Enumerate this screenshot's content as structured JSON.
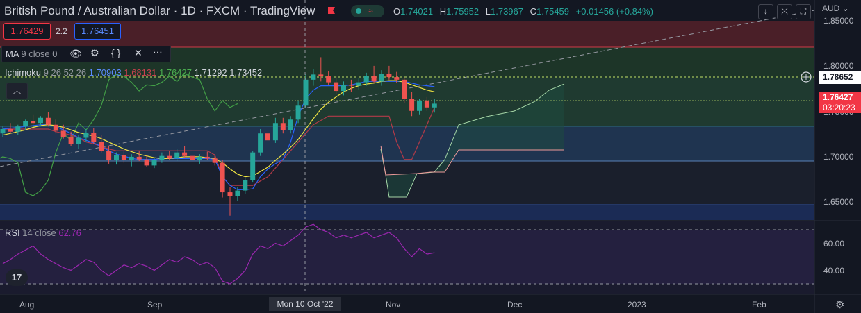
{
  "header": {
    "title": "British Pound / Australian Dollar · 1D · FXCM · TradingView",
    "market_status_icon": "market-open-dot",
    "ohlc": {
      "o_label": "O",
      "o": "1.74021",
      "h_label": "H",
      "h": "1.75952",
      "l_label": "L",
      "l": "1.73967",
      "c_label": "C",
      "c": "1.75459",
      "change": "+0.01456 (+0.84%)"
    },
    "sell_price": "1.76429",
    "spread": "2.2",
    "buy_price": "1.76451"
  },
  "indicators": {
    "ma": {
      "name": "MA",
      "params": "9 close 0"
    },
    "ichimoku": {
      "name": "Ichimoku",
      "params": "9 26 52 26",
      "v1": "1.70903",
      "v2": "1.68131",
      "v3": "1.76427",
      "v4": "1.71292",
      "v5": "1.73452"
    },
    "rsi": {
      "name": "RSI",
      "params": "14 close",
      "value": "62.76"
    }
  },
  "price_axis": {
    "currency": "AUD",
    "ticks": [
      "1.85000",
      "1.80000",
      "1.75000",
      "1.70000",
      "1.65000"
    ],
    "crosshair_price": "1.78652",
    "last_price": "1.76427",
    "countdown": "03:20:23"
  },
  "rsi_axis": {
    "ticks": [
      "60.00",
      "40.00"
    ]
  },
  "time_axis": {
    "labels": [
      "Aug",
      "Sep",
      "Nov",
      "Dec",
      "2023",
      "Feb"
    ],
    "crosshair_date": "Mon 10 Oct '22"
  },
  "colors": {
    "background": "#131722",
    "up": "#26a69a",
    "down": "#ef5350",
    "ma": "#f0e442",
    "tenkan": "#2962ff",
    "kijun": "#b23a48",
    "lagging": "#43a047",
    "rsi": "#9c27b0",
    "buy": "#2962ff",
    "sell": "#f23645"
  },
  "chart_data": {
    "type": "candlestick",
    "symbol": "GBPAUD",
    "ylim": [
      1.63,
      1.86
    ],
    "candles": [
      [
        1.73,
        1.738,
        1.726,
        1.735
      ],
      [
        1.735,
        1.742,
        1.73,
        1.732
      ],
      [
        1.732,
        1.74,
        1.728,
        1.738
      ],
      [
        1.738,
        1.746,
        1.734,
        1.744
      ],
      [
        1.744,
        1.752,
        1.74,
        1.742
      ],
      [
        1.742,
        1.75,
        1.738,
        1.748
      ],
      [
        1.748,
        1.755,
        1.738,
        1.74
      ],
      [
        1.74,
        1.746,
        1.73,
        1.733
      ],
      [
        1.733,
        1.74,
        1.724,
        1.726
      ],
      [
        1.726,
        1.732,
        1.715,
        1.718
      ],
      [
        1.718,
        1.728,
        1.712,
        1.725
      ],
      [
        1.725,
        1.735,
        1.72,
        1.731
      ],
      [
        1.731,
        1.736,
        1.718,
        1.72
      ],
      [
        1.72,
        1.728,
        1.708,
        1.71
      ],
      [
        1.71,
        1.716,
        1.695,
        1.699
      ],
      [
        1.699,
        1.708,
        1.694,
        1.705
      ],
      [
        1.705,
        1.71,
        1.696,
        1.699
      ],
      [
        1.699,
        1.706,
        1.692,
        1.703
      ],
      [
        1.703,
        1.71,
        1.698,
        1.7
      ],
      [
        1.7,
        1.705,
        1.691,
        1.693
      ],
      [
        1.693,
        1.702,
        1.69,
        1.699
      ],
      [
        1.699,
        1.708,
        1.696,
        1.704
      ],
      [
        1.704,
        1.71,
        1.699,
        1.701
      ],
      [
        1.701,
        1.712,
        1.698,
        1.708
      ],
      [
        1.708,
        1.715,
        1.702,
        1.704
      ],
      [
        1.704,
        1.709,
        1.696,
        1.699
      ],
      [
        1.699,
        1.706,
        1.695,
        1.703
      ],
      [
        1.703,
        1.709,
        1.699,
        1.701
      ],
      [
        1.701,
        1.706,
        1.693,
        1.696
      ],
      [
        1.696,
        1.699,
        1.656,
        1.662
      ],
      [
        1.662,
        1.668,
        1.635,
        1.658
      ],
      [
        1.658,
        1.668,
        1.652,
        1.664
      ],
      [
        1.664,
        1.678,
        1.66,
        1.676
      ],
      [
        1.676,
        1.71,
        1.674,
        1.708
      ],
      [
        1.708,
        1.735,
        1.704,
        1.73
      ],
      [
        1.73,
        1.742,
        1.718,
        1.722
      ],
      [
        1.722,
        1.748,
        1.719,
        1.742
      ],
      [
        1.742,
        1.748,
        1.73,
        1.734
      ],
      [
        1.734,
        1.75,
        1.73,
        1.746
      ],
      [
        1.746,
        1.768,
        1.742,
        1.762
      ],
      [
        1.762,
        1.798,
        1.76,
        1.792
      ],
      [
        1.792,
        1.804,
        1.785,
        1.798
      ],
      [
        1.798,
        1.818,
        1.79,
        1.796
      ],
      [
        1.796,
        1.802,
        1.786,
        1.789
      ],
      [
        1.789,
        1.796,
        1.775,
        1.779
      ],
      [
        1.779,
        1.79,
        1.774,
        1.786
      ],
      [
        1.786,
        1.792,
        1.778,
        1.785
      ],
      [
        1.785,
        1.794,
        1.78,
        1.789
      ],
      [
        1.789,
        1.8,
        1.785,
        1.796
      ],
      [
        1.796,
        1.808,
        1.788,
        1.79
      ],
      [
        1.79,
        1.803,
        1.785,
        1.799
      ],
      [
        1.799,
        1.808,
        1.792,
        1.795
      ],
      [
        1.795,
        1.801,
        1.788,
        1.792
      ],
      [
        1.792,
        1.795,
        1.765,
        1.77
      ],
      [
        1.77,
        1.778,
        1.75,
        1.756
      ],
      [
        1.756,
        1.77,
        1.752,
        1.768
      ],
      [
        1.768,
        1.772,
        1.756,
        1.76
      ],
      [
        1.76,
        1.77,
        1.754,
        1.7643
      ]
    ],
    "ma9": [
      1.728,
      1.73,
      1.732,
      1.734,
      1.737,
      1.739,
      1.74,
      1.739,
      1.737,
      1.734,
      1.731,
      1.729,
      1.727,
      1.724,
      1.72,
      1.716,
      1.712,
      1.709,
      1.706,
      1.704,
      1.702,
      1.701,
      1.701,
      1.702,
      1.703,
      1.703,
      1.703,
      1.702,
      1.701,
      1.696,
      1.689,
      1.683,
      1.68,
      1.681,
      1.686,
      1.691,
      1.699,
      1.706,
      1.714,
      1.723,
      1.735,
      1.747,
      1.758,
      1.766,
      1.772,
      1.778,
      1.782,
      1.785,
      1.787,
      1.788,
      1.79,
      1.791,
      1.791,
      1.789,
      1.786,
      1.783,
      1.78,
      1.778
    ],
    "tenkan": [
      1.735,
      1.736,
      1.737,
      1.738,
      1.739,
      1.74,
      1.74,
      1.738,
      1.734,
      1.73,
      1.725,
      1.722,
      1.719,
      1.715,
      1.71,
      1.706,
      1.704,
      1.701,
      1.7,
      1.7,
      1.7,
      1.701,
      1.701,
      1.701,
      1.701,
      1.701,
      1.701,
      1.701,
      1.7,
      1.68,
      1.67,
      1.665,
      1.665,
      1.666,
      1.68,
      1.689,
      1.695,
      1.7,
      1.72,
      1.75,
      1.77,
      1.78,
      1.785,
      1.785,
      1.785,
      1.785,
      1.786,
      1.788,
      1.79,
      1.79,
      1.79,
      1.79,
      1.79,
      1.79,
      1.788,
      1.786,
      1.785,
      1.784
    ],
    "kijun": [
      1.735,
      1.735,
      1.735,
      1.735,
      1.735,
      1.735,
      1.735,
      1.732,
      1.73,
      1.728,
      1.725,
      1.72,
      1.718,
      1.715,
      1.712,
      1.71,
      1.71,
      1.71,
      1.71,
      1.71,
      1.71,
      1.71,
      1.71,
      1.71,
      1.71,
      1.71,
      1.71,
      1.71,
      1.705,
      1.68,
      1.67,
      1.67,
      1.67,
      1.67,
      1.675,
      1.68,
      1.69,
      1.7,
      1.71,
      1.72,
      1.73,
      1.74,
      1.745,
      1.75,
      1.75,
      1.75,
      1.75,
      1.75,
      1.75,
      1.75,
      1.75,
      1.75,
      1.72,
      1.7,
      1.7,
      1.72,
      1.74,
      1.76
    ],
    "rsi": [
      45,
      48,
      52,
      55,
      58,
      52,
      48,
      45,
      42,
      40,
      44,
      48,
      46,
      40,
      36,
      40,
      44,
      42,
      45,
      43,
      40,
      44,
      48,
      46,
      50,
      48,
      44,
      46,
      42,
      32,
      30,
      34,
      40,
      52,
      58,
      56,
      60,
      58,
      62,
      66,
      72,
      74,
      70,
      68,
      64,
      66,
      64,
      66,
      68,
      64,
      66,
      68,
      64,
      56,
      50,
      56,
      52,
      53
    ]
  }
}
